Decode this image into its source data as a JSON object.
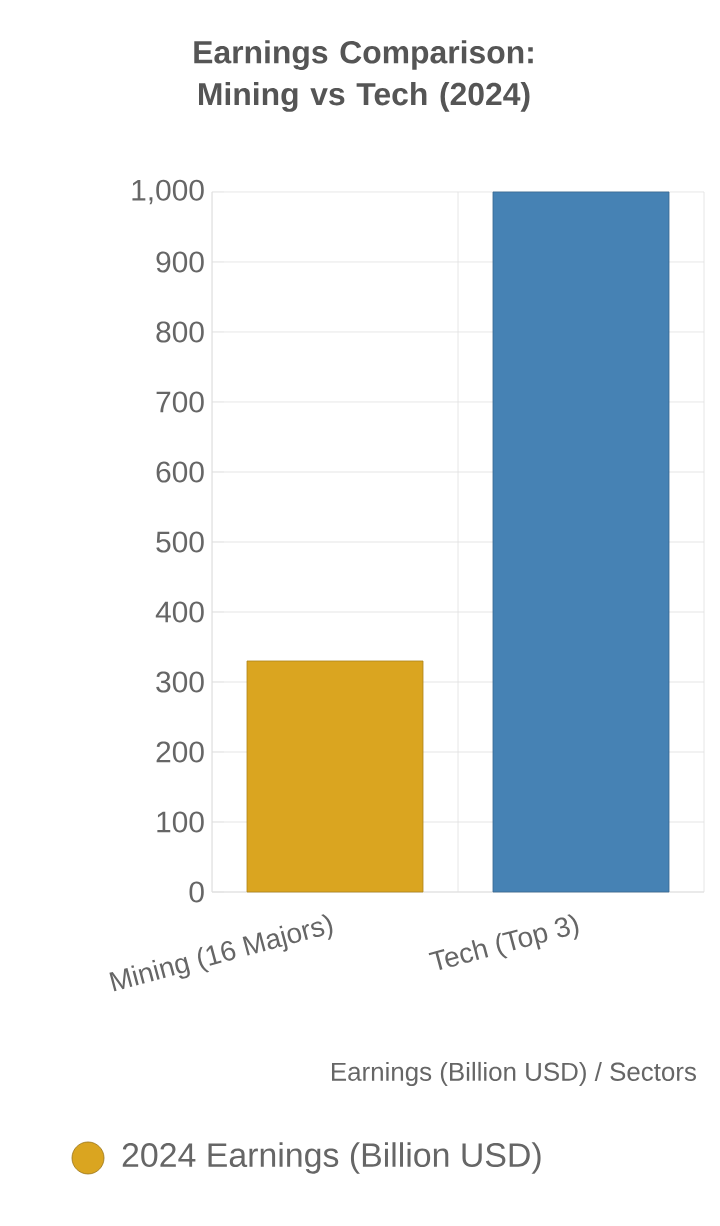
{
  "chart_data": {
    "type": "bar",
    "title": "Earnings Comparison: Mining vs Tech (2024)",
    "xlabel": "Earnings (Billion USD) / Sectors",
    "categories": [
      "Mining (16 Majors)",
      "Tech (Top 3)"
    ],
    "series": [
      {
        "name": "2024 Earnings (Billion USD)",
        "colors": [
          "#daa520",
          "#4682b4"
        ],
        "values": [
          330,
          1000
        ]
      }
    ],
    "ylim": [
      0,
      1000
    ],
    "yticks": [
      0,
      100,
      200,
      300,
      400,
      500,
      600,
      700,
      800,
      900,
      {
        "value": 1000,
        "label": "1,000"
      }
    ],
    "grid": true,
    "legend": "bottom"
  }
}
